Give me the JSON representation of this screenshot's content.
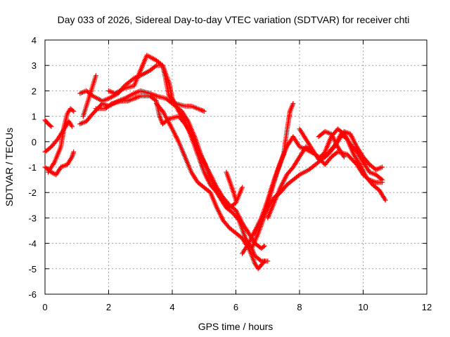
{
  "chart_data": {
    "type": "scatter",
    "title": "Day 033 of 2026, Sidereal Day-to-day VTEC variation (SDTVAR) for receiver chti",
    "xlabel": "GPS time / hours",
    "ylabel": "SDTVAR / TECUs",
    "xlim": [
      0,
      12
    ],
    "ylim": [
      -6,
      4
    ],
    "xticks": [
      "0",
      "2",
      "4",
      "6",
      "8",
      "10",
      "12"
    ],
    "yticks": [
      "-6",
      "-5",
      "-4",
      "-3",
      "-2",
      "-1",
      "0",
      "1",
      "2",
      "3",
      "4"
    ],
    "grid": true,
    "marker": "plus",
    "series": [
      {
        "color": "#ff0000",
        "points": [
          [
            0.0,
            -0.4
          ],
          [
            0.2,
            -0.2
          ],
          [
            0.4,
            0.1
          ],
          [
            0.6,
            0.5
          ],
          [
            0.75,
            0.8
          ],
          [
            0.85,
            0.6
          ]
        ]
      },
      {
        "color": "#ff0000",
        "points": [
          [
            0.0,
            -1.0
          ],
          [
            0.2,
            -1.2
          ],
          [
            0.35,
            -1.3
          ],
          [
            0.5,
            -1.0
          ],
          [
            0.7,
            -0.9
          ],
          [
            0.85,
            -0.6
          ],
          [
            0.9,
            -0.4
          ]
        ]
      },
      {
        "color": "#ff0000",
        "points": [
          [
            0.0,
            0.85
          ],
          [
            0.1,
            0.7
          ],
          [
            0.2,
            0.6
          ]
        ]
      },
      {
        "color": "#ff0000",
        "points": [
          [
            0.1,
            -1.2
          ],
          [
            0.3,
            -0.8
          ],
          [
            0.5,
            -0.2
          ],
          [
            0.6,
            0.6
          ],
          [
            0.7,
            1.1
          ],
          [
            0.8,
            1.3
          ],
          [
            0.9,
            1.2
          ]
        ]
      },
      {
        "color": "#ff0000",
        "points": [
          [
            1.1,
            0.7
          ],
          [
            1.3,
            0.8
          ],
          [
            1.5,
            1.1
          ],
          [
            1.8,
            1.5
          ],
          [
            2.0,
            1.4
          ],
          [
            2.3,
            1.6
          ],
          [
            2.5,
            1.7
          ],
          [
            2.8,
            1.9
          ],
          [
            3.0,
            2.0
          ],
          [
            3.3,
            1.9
          ],
          [
            3.5,
            1.8
          ],
          [
            3.8,
            1.7
          ],
          [
            4.0,
            1.5
          ],
          [
            4.3,
            1.2
          ],
          [
            4.5,
            0.8
          ],
          [
            4.7,
            0.2
          ],
          [
            4.9,
            -0.5
          ],
          [
            5.1,
            -1.1
          ],
          [
            5.3,
            -1.7
          ],
          [
            5.5,
            -2.2
          ],
          [
            5.7,
            -2.6
          ],
          [
            5.9,
            -2.8
          ],
          [
            6.1,
            -3.1
          ],
          [
            6.3,
            -3.8
          ],
          [
            6.5,
            -4.2
          ],
          [
            6.6,
            -4.5
          ],
          [
            6.8,
            -4.7
          ],
          [
            7.0,
            -4.7
          ]
        ]
      },
      {
        "color": "#ff0000",
        "points": [
          [
            1.1,
            1.9
          ],
          [
            1.3,
            2.0
          ],
          [
            1.5,
            1.8
          ],
          [
            1.8,
            1.6
          ],
          [
            2.0,
            1.7
          ],
          [
            2.3,
            1.9
          ],
          [
            2.5,
            2.2
          ],
          [
            2.8,
            2.5
          ],
          [
            3.0,
            2.6
          ],
          [
            3.3,
            2.8
          ],
          [
            3.5,
            3.0
          ],
          [
            3.7,
            3.0
          ],
          [
            3.9,
            2.3
          ],
          [
            4.0,
            1.7
          ],
          [
            4.2,
            1.2
          ],
          [
            4.4,
            0.8
          ],
          [
            4.6,
            0.2
          ],
          [
            4.8,
            -0.5
          ],
          [
            5.0,
            -1.2
          ],
          [
            5.2,
            -1.7
          ],
          [
            5.4,
            -2.0
          ],
          [
            5.6,
            -2.4
          ],
          [
            5.8,
            -2.6
          ],
          [
            6.0,
            -2.4
          ],
          [
            6.2,
            -1.8
          ]
        ]
      },
      {
        "color": "#ff0000",
        "points": [
          [
            1.2,
            1.0
          ],
          [
            1.4,
            1.8
          ],
          [
            1.6,
            2.6
          ]
        ]
      },
      {
        "color": "#ff0000",
        "points": [
          [
            1.6,
            1.3
          ],
          [
            1.9,
            1.3
          ],
          [
            2.1,
            1.5
          ],
          [
            2.4,
            1.6
          ],
          [
            2.6,
            1.6
          ],
          [
            2.8,
            1.7
          ],
          [
            3.0,
            1.8
          ],
          [
            3.3,
            1.8
          ],
          [
            3.5,
            1.6
          ],
          [
            3.6,
            1.0
          ],
          [
            3.7,
            0.7
          ],
          [
            3.9,
            0.9
          ],
          [
            4.2,
            1.0
          ],
          [
            4.4,
            0.7
          ],
          [
            4.6,
            0.3
          ],
          [
            4.8,
            -0.3
          ],
          [
            5.0,
            -0.8
          ],
          [
            5.2,
            -1.3
          ],
          [
            5.4,
            -1.8
          ],
          [
            5.6,
            -2.2
          ],
          [
            5.8,
            -2.5
          ],
          [
            6.0,
            -2.7
          ],
          [
            6.2,
            -3.2
          ],
          [
            6.4,
            -3.6
          ],
          [
            6.6,
            -4.0
          ],
          [
            6.8,
            -4.2
          ],
          [
            6.9,
            -4.1
          ]
        ]
      },
      {
        "color": "#ff0000",
        "points": [
          [
            2.0,
            2.0
          ],
          [
            2.2,
            1.9
          ],
          [
            2.5,
            2.1
          ],
          [
            2.8,
            2.2
          ],
          [
            3.2,
            3.4
          ],
          [
            3.5,
            3.2
          ],
          [
            3.7,
            3.0
          ],
          [
            3.9,
            1.8
          ],
          [
            4.1,
            1.5
          ],
          [
            4.4,
            1.4
          ],
          [
            4.6,
            1.4
          ],
          [
            4.8,
            1.3
          ],
          [
            5.0,
            1.2
          ]
        ]
      },
      {
        "color": "#ff0000",
        "points": [
          [
            3.5,
            1.5
          ],
          [
            3.7,
            1.2
          ],
          [
            4.0,
            0.5
          ],
          [
            4.2,
            0.0
          ],
          [
            4.4,
            -0.6
          ],
          [
            4.6,
            -1.2
          ],
          [
            4.8,
            -1.6
          ],
          [
            5.0,
            -1.8
          ],
          [
            5.2,
            -2.0
          ],
          [
            5.4,
            -2.6
          ],
          [
            5.6,
            -3.1
          ],
          [
            5.8,
            -3.4
          ],
          [
            6.0,
            -3.6
          ],
          [
            6.2,
            -3.8
          ],
          [
            6.4,
            -4.2
          ],
          [
            6.6,
            -4.8
          ],
          [
            6.7,
            -5.0
          ],
          [
            6.9,
            -4.7
          ]
        ]
      },
      {
        "color": "#ff0000",
        "points": [
          [
            5.7,
            -1.2
          ],
          [
            5.9,
            -1.9
          ],
          [
            6.0,
            -2.3
          ]
        ]
      },
      {
        "color": "#ff0000",
        "points": [
          [
            6.2,
            -4.4
          ],
          [
            6.4,
            -4.0
          ],
          [
            6.6,
            -3.5
          ],
          [
            6.8,
            -3.0
          ],
          [
            7.0,
            -2.3
          ],
          [
            7.2,
            -1.5
          ],
          [
            7.4,
            -0.8
          ],
          [
            7.6,
            -0.2
          ],
          [
            7.8,
            0.2
          ],
          [
            8.0,
            -0.2
          ],
          [
            8.2,
            -0.3
          ],
          [
            8.5,
            -0.5
          ],
          [
            8.8,
            -0.9
          ],
          [
            9.0,
            -0.6
          ],
          [
            9.2,
            -0.4
          ],
          [
            9.5,
            -0.5
          ],
          [
            9.8,
            -0.9
          ],
          [
            10.0,
            -1.3
          ],
          [
            10.2,
            -1.5
          ],
          [
            10.4,
            -1.6
          ],
          [
            10.6,
            -1.6
          ]
        ]
      },
      {
        "color": "#ff0000",
        "points": [
          [
            6.5,
            -4.2
          ],
          [
            6.7,
            -3.6
          ],
          [
            6.9,
            -2.9
          ],
          [
            7.1,
            -2.0
          ],
          [
            7.3,
            -1.2
          ],
          [
            7.5,
            -0.5
          ],
          [
            7.6,
            0.4
          ],
          [
            7.7,
            1.2
          ],
          [
            7.8,
            1.5
          ]
        ]
      },
      {
        "color": "#ff0000",
        "points": [
          [
            6.6,
            -3.6
          ],
          [
            6.8,
            -3.1
          ],
          [
            7.0,
            -2.6
          ],
          [
            7.2,
            -2.2
          ],
          [
            7.4,
            -2.0
          ],
          [
            7.6,
            -1.7
          ],
          [
            7.8,
            -1.5
          ],
          [
            8.0,
            -1.3
          ],
          [
            8.3,
            -1.1
          ],
          [
            8.6,
            -0.8
          ],
          [
            8.9,
            -0.5
          ],
          [
            9.1,
            -0.2
          ],
          [
            9.3,
            0.3
          ],
          [
            9.5,
            0.1
          ],
          [
            9.7,
            -0.5
          ],
          [
            9.9,
            -0.9
          ],
          [
            10.1,
            -1.4
          ],
          [
            10.3,
            -1.7
          ],
          [
            10.5,
            -1.9
          ],
          [
            10.7,
            -2.3
          ]
        ]
      },
      {
        "color": "#ff0000",
        "points": [
          [
            7.0,
            -3.0
          ],
          [
            7.2,
            -2.4
          ],
          [
            7.4,
            -1.8
          ],
          [
            7.6,
            -1.3
          ],
          [
            7.8,
            -1.0
          ],
          [
            8.0,
            -0.6
          ],
          [
            8.2,
            -0.2
          ],
          [
            8.4,
            -0.4
          ],
          [
            8.6,
            -0.6
          ],
          [
            8.8,
            -0.6
          ],
          [
            9.0,
            -0.3
          ],
          [
            9.2,
            0.0
          ],
          [
            9.4,
            0.4
          ],
          [
            9.6,
            0.3
          ],
          [
            9.8,
            -0.2
          ],
          [
            10.0,
            -0.6
          ],
          [
            10.2,
            -0.9
          ],
          [
            10.4,
            -1.1
          ],
          [
            10.6,
            -1.0
          ]
        ]
      },
      {
        "color": "#ff0000",
        "points": [
          [
            8.0,
            0.5
          ],
          [
            8.2,
            0.1
          ],
          [
            8.4,
            -0.3
          ],
          [
            8.6,
            -0.7
          ],
          [
            8.8,
            -0.4
          ],
          [
            9.0,
            0.2
          ],
          [
            9.2,
            0.5
          ],
          [
            9.4,
            0.3
          ],
          [
            9.6,
            -0.1
          ],
          [
            9.8,
            -0.4
          ],
          [
            10.0,
            -0.8
          ],
          [
            10.2,
            -1.2
          ],
          [
            10.4,
            -1.3
          ],
          [
            10.6,
            -1.5
          ]
        ]
      },
      {
        "color": "#ff0000",
        "points": [
          [
            8.6,
            0.2
          ],
          [
            8.8,
            0.4
          ],
          [
            9.0,
            0.3
          ],
          [
            9.2,
            -0.2
          ],
          [
            9.4,
            -0.6
          ]
        ]
      }
    ]
  }
}
